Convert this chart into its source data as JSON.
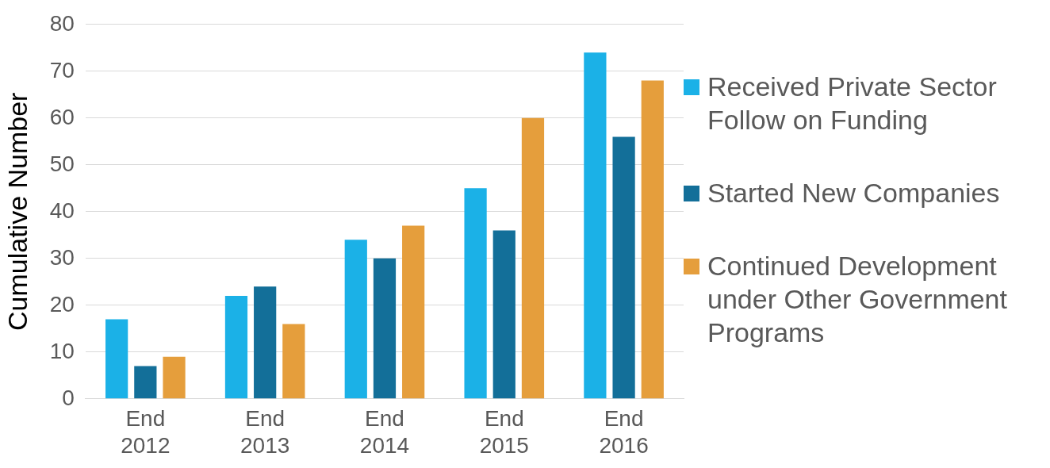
{
  "chart_data": {
    "type": "bar",
    "ylabel": "Cumulative Number",
    "categories": [
      "End 2012",
      "End 2013",
      "End 2014",
      "End 2015",
      "End 2016"
    ],
    "series": [
      {
        "name": "Received Private Sector Follow on Funding",
        "color": "#1bb1e7",
        "values": [
          17,
          22,
          34,
          45,
          74
        ]
      },
      {
        "name": "Started New Companies",
        "color": "#136f99",
        "values": [
          7,
          24,
          30,
          36,
          56
        ]
      },
      {
        "name": "Continued Development under Other Government Programs",
        "color": "#e59e3c",
        "values": [
          9,
          16,
          37,
          60,
          68
        ]
      }
    ],
    "ylim": [
      0,
      80
    ],
    "yticks": [
      0,
      10,
      20,
      30,
      40,
      50,
      60,
      70,
      80
    ],
    "grid": "y",
    "legend": "right"
  }
}
